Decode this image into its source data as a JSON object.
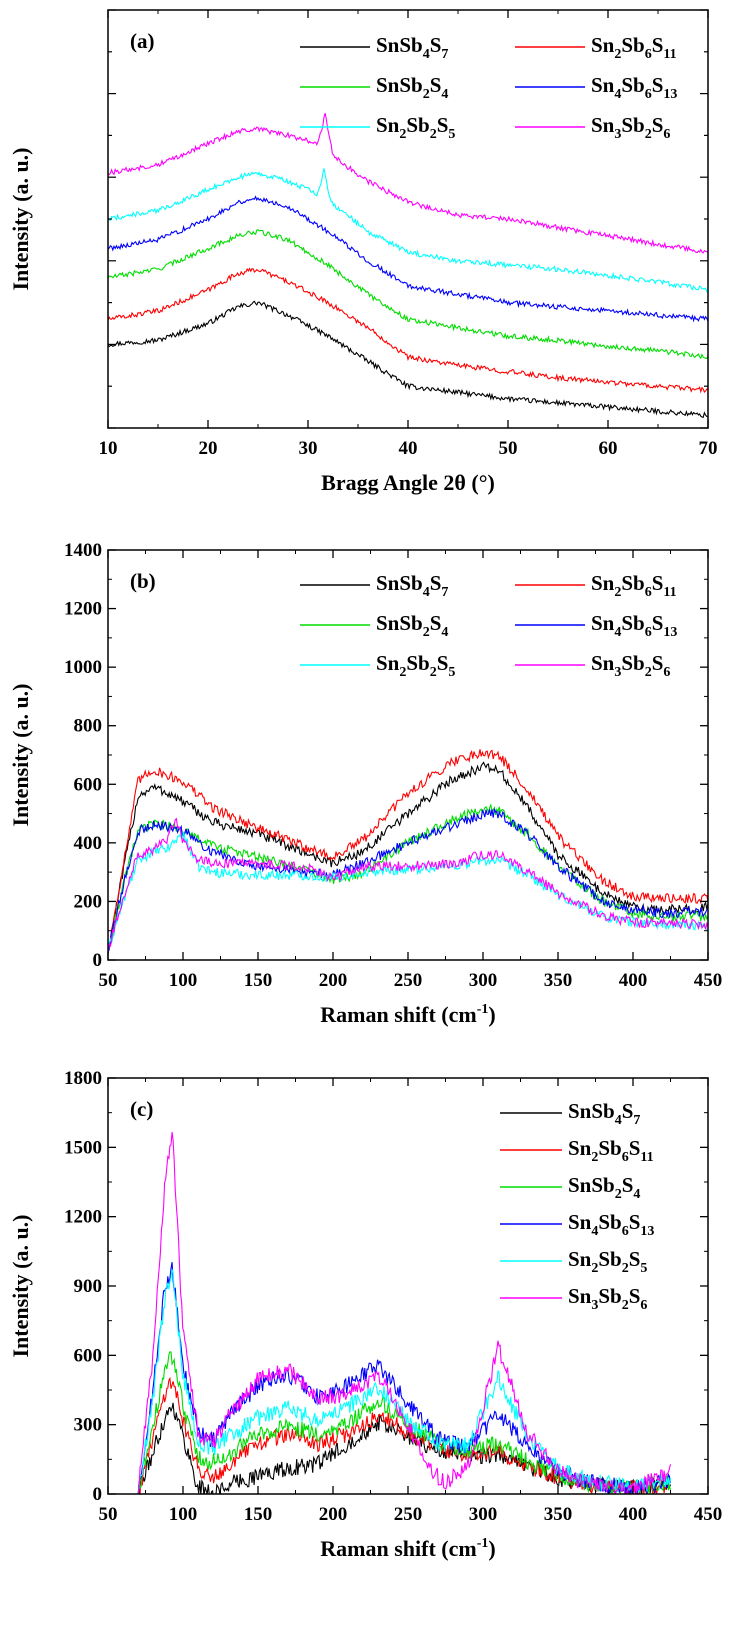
{
  "chart_data": [
    {
      "panel": "(a)",
      "type": "line",
      "xlabel": "Bragg Angle 2θ (°)",
      "ylabel": "Intensity (a. u.)",
      "xlim": [
        10,
        70
      ],
      "xticks": [
        10,
        20,
        30,
        40,
        50,
        60,
        70
      ],
      "yticks": [],
      "ylim": [
        0,
        100
      ],
      "legend": "top-right, two columns",
      "series": [
        {
          "name": "SnSb4S7",
          "color": "#000000",
          "x": [
            10,
            15,
            20,
            23,
            25,
            28,
            32,
            36,
            40,
            45,
            50,
            55,
            60,
            65,
            70
          ],
          "y": [
            20,
            21,
            25,
            29,
            30,
            27,
            22,
            16,
            10,
            8.5,
            7,
            6,
            5,
            4,
            3
          ]
        },
        {
          "name": "Sn2Sb6S11",
          "color": "#ff0000",
          "x": [
            10,
            15,
            20,
            23,
            25,
            28,
            32,
            36,
            40,
            45,
            50,
            55,
            60,
            65,
            70
          ],
          "y": [
            26,
            28,
            33,
            37,
            38,
            35,
            30,
            24,
            17,
            15,
            13.5,
            12,
            11,
            10,
            9
          ]
        },
        {
          "name": "SnSb2S4",
          "color": "#00dd00",
          "x": [
            10,
            15,
            20,
            23,
            25,
            28,
            32,
            36,
            40,
            45,
            50,
            55,
            60,
            65,
            70
          ],
          "y": [
            36,
            38,
            43,
            46,
            47,
            45,
            39,
            32,
            26,
            24,
            22,
            21,
            19.5,
            18.5,
            17
          ]
        },
        {
          "name": "Sn4Sb6S13",
          "color": "#0000ff",
          "x": [
            10,
            15,
            20,
            23,
            25,
            28,
            32,
            36,
            40,
            45,
            50,
            55,
            60,
            65,
            70
          ],
          "y": [
            43,
            45,
            50,
            54,
            55,
            53,
            47,
            40,
            34,
            32,
            30,
            29,
            28,
            27,
            26
          ]
        },
        {
          "name": "Sn2Sb2S5",
          "color": "#00ffff",
          "x": [
            10,
            15,
            20,
            23,
            25,
            28,
            31,
            31.6,
            32.3,
            36,
            40,
            45,
            50,
            55,
            60,
            65,
            70
          ],
          "y": [
            50,
            52,
            57,
            60,
            61,
            59,
            56,
            62,
            54,
            47,
            42,
            40,
            39,
            38,
            36.5,
            35,
            33
          ]
        },
        {
          "name": "Sn3Sb2S6",
          "color": "#ff00ff",
          "x": [
            10,
            15,
            20,
            23,
            25,
            28,
            31,
            31.7,
            32.5,
            36,
            40,
            45,
            50,
            55,
            60,
            65,
            70
          ],
          "y": [
            61,
            63,
            68,
            71,
            71.5,
            70,
            68,
            75,
            65,
            59,
            54,
            51,
            50,
            48,
            46,
            44,
            42
          ]
        }
      ]
    },
    {
      "panel": "(b)",
      "type": "line",
      "xlabel": "Raman shift (cm-1)",
      "ylabel": "Intensity (a. u.)",
      "xlim": [
        50,
        450
      ],
      "ylim": [
        0,
        1400
      ],
      "xticks": [
        50,
        100,
        150,
        200,
        250,
        300,
        350,
        400,
        450
      ],
      "yticks": [
        0,
        200,
        400,
        600,
        800,
        1000,
        1200,
        1400
      ],
      "legend": "top-right, two columns",
      "series": [
        {
          "name": "SnSb4S7",
          "color": "#000000",
          "x": [
            50,
            60,
            70,
            80,
            90,
            100,
            120,
            150,
            180,
            200,
            220,
            250,
            280,
            300,
            310,
            330,
            350,
            380,
            400,
            420,
            450
          ],
          "y": [
            30,
            300,
            560,
            590,
            570,
            540,
            470,
            430,
            370,
            330,
            370,
            500,
            620,
            660,
            650,
            520,
            360,
            230,
            180,
            170,
            180
          ]
        },
        {
          "name": "Sn2Sb6S11",
          "color": "#ff0000",
          "x": [
            50,
            60,
            70,
            80,
            90,
            100,
            120,
            150,
            180,
            200,
            220,
            250,
            280,
            300,
            310,
            330,
            350,
            380,
            400,
            420,
            450
          ],
          "y": [
            30,
            320,
            610,
            650,
            630,
            610,
            520,
            450,
            390,
            350,
            410,
            570,
            680,
            710,
            700,
            580,
            420,
            270,
            220,
            210,
            210
          ]
        },
        {
          "name": "SnSb2S4",
          "color": "#00dd00",
          "x": [
            50,
            60,
            70,
            80,
            90,
            100,
            120,
            150,
            180,
            200,
            220,
            250,
            280,
            300,
            310,
            330,
            350,
            380,
            400,
            420,
            450
          ],
          "y": [
            30,
            250,
            440,
            465,
            460,
            440,
            390,
            350,
            310,
            270,
            300,
            400,
            480,
            515,
            510,
            430,
            320,
            200,
            160,
            150,
            150
          ]
        },
        {
          "name": "Sn4Sb6S13",
          "color": "#0000ff",
          "x": [
            50,
            60,
            70,
            80,
            90,
            100,
            120,
            150,
            180,
            200,
            220,
            250,
            280,
            300,
            310,
            330,
            350,
            380,
            400,
            420,
            450
          ],
          "y": [
            30,
            250,
            440,
            460,
            455,
            440,
            370,
            320,
            300,
            290,
            330,
            400,
            460,
            500,
            500,
            430,
            320,
            200,
            170,
            160,
            165
          ]
        },
        {
          "name": "Sn2Sb2S5",
          "color": "#00ffff",
          "x": [
            50,
            60,
            70,
            80,
            90,
            95,
            100,
            110,
            120,
            150,
            180,
            200,
            220,
            250,
            280,
            300,
            310,
            330,
            350,
            380,
            400,
            420,
            450
          ],
          "y": [
            30,
            200,
            340,
            370,
            380,
            410,
            430,
            320,
            300,
            290,
            290,
            280,
            300,
            310,
            320,
            340,
            340,
            290,
            220,
            150,
            130,
            120,
            115
          ]
        },
        {
          "name": "Sn3Sb2S6",
          "color": "#ff00ff",
          "x": [
            50,
            60,
            70,
            80,
            90,
            95,
            100,
            110,
            120,
            150,
            180,
            200,
            220,
            250,
            280,
            300,
            310,
            330,
            350,
            380,
            400,
            420,
            450
          ],
          "y": [
            30,
            210,
            360,
            375,
            410,
            485,
            410,
            340,
            330,
            330,
            320,
            280,
            320,
            320,
            330,
            360,
            360,
            300,
            230,
            150,
            130,
            125,
            120
          ]
        }
      ]
    },
    {
      "panel": "(c)",
      "type": "line",
      "xlabel": "Raman shift (cm-1)",
      "ylabel": "Intensity (a. u.)",
      "xlim": [
        50,
        450
      ],
      "ylim": [
        0,
        1800
      ],
      "xticks": [
        50,
        100,
        150,
        200,
        250,
        300,
        350,
        400,
        450
      ],
      "yticks": [
        0,
        300,
        600,
        900,
        1200,
        1500,
        1800
      ],
      "legend": "top-right, one column",
      "series": [
        {
          "name": "SnSb4S7",
          "color": "#000000",
          "x": [
            70,
            80,
            88,
            93,
            100,
            110,
            120,
            130,
            150,
            170,
            190,
            210,
            230,
            250,
            270,
            290,
            310,
            330,
            350,
            370,
            400,
            425
          ],
          "y": [
            0,
            180,
            330,
            390,
            250,
            30,
            0,
            40,
            80,
            110,
            130,
            220,
            310,
            250,
            190,
            160,
            170,
            120,
            70,
            40,
            25,
            40
          ]
        },
        {
          "name": "Sn2Sb6S11",
          "color": "#ff0000",
          "x": [
            70,
            80,
            88,
            93,
            100,
            110,
            120,
            130,
            150,
            170,
            190,
            210,
            230,
            250,
            270,
            290,
            310,
            330,
            350,
            370,
            400,
            425
          ],
          "y": [
            0,
            250,
            440,
            500,
            320,
            110,
            80,
            120,
            220,
            260,
            220,
            260,
            340,
            270,
            200,
            170,
            180,
            120,
            70,
            40,
            25,
            40
          ]
        },
        {
          "name": "SnSb2S4",
          "color": "#00dd00",
          "x": [
            70,
            80,
            88,
            93,
            100,
            110,
            120,
            130,
            150,
            170,
            190,
            210,
            230,
            250,
            270,
            290,
            310,
            330,
            350,
            370,
            400,
            425
          ],
          "y": [
            0,
            300,
            540,
            600,
            380,
            160,
            140,
            170,
            260,
            290,
            260,
            300,
            410,
            300,
            220,
            180,
            220,
            140,
            80,
            45,
            25,
            50
          ]
        },
        {
          "name": "Sn4Sb6S13",
          "color": "#0000ff",
          "x": [
            70,
            80,
            88,
            93,
            100,
            110,
            120,
            130,
            150,
            170,
            190,
            210,
            230,
            250,
            270,
            290,
            310,
            330,
            350,
            370,
            400,
            425
          ],
          "y": [
            0,
            450,
            900,
            980,
            550,
            280,
            230,
            330,
            470,
            520,
            420,
            470,
            560,
            390,
            240,
            200,
            350,
            200,
            100,
            50,
            25,
            60
          ]
        },
        {
          "name": "Sn2Sb2S5",
          "color": "#00ffff",
          "x": [
            70,
            80,
            88,
            93,
            100,
            110,
            120,
            130,
            150,
            170,
            190,
            210,
            230,
            250,
            270,
            290,
            310,
            330,
            350,
            370,
            400,
            425
          ],
          "y": [
            0,
            420,
            850,
            960,
            520,
            230,
            190,
            250,
            330,
            370,
            320,
            380,
            460,
            320,
            220,
            210,
            500,
            250,
            110,
            55,
            30,
            60
          ]
        },
        {
          "name": "Sn3Sb2S6",
          "color": "#ff00ff",
          "x": [
            70,
            80,
            88,
            93,
            100,
            110,
            120,
            130,
            150,
            170,
            190,
            210,
            230,
            250,
            265,
            275,
            290,
            310,
            330,
            350,
            370,
            400,
            425
          ],
          "y": [
            0,
            600,
            1350,
            1570,
            700,
            260,
            220,
            330,
            500,
            540,
            420,
            430,
            520,
            300,
            100,
            50,
            120,
            640,
            260,
            100,
            40,
            20,
            100
          ]
        }
      ]
    }
  ]
}
